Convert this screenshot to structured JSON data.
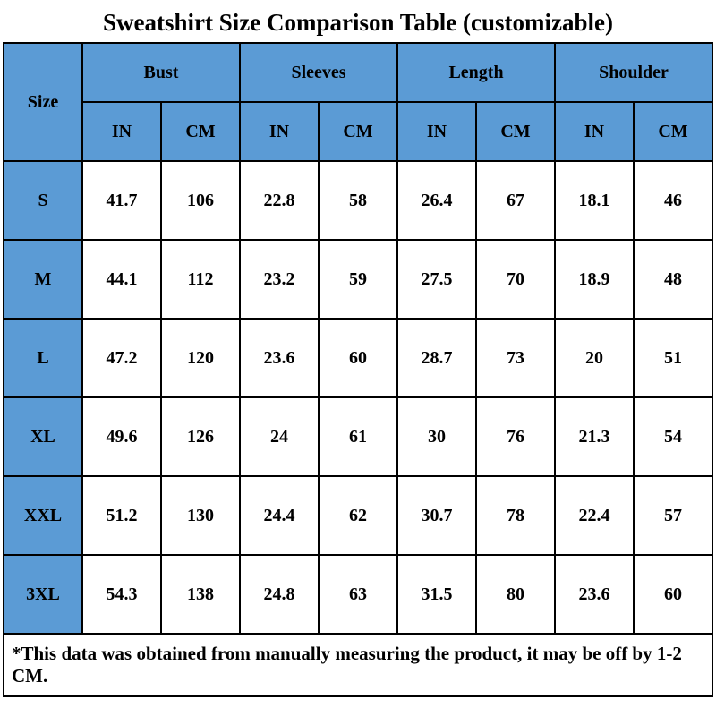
{
  "title": "Sweatshirt Size Comparison Table (customizable)",
  "table": {
    "size_header": "Size",
    "groups": [
      {
        "label": "Bust",
        "units": [
          "IN",
          "CM"
        ]
      },
      {
        "label": "Sleeves",
        "units": [
          "IN",
          "CM"
        ]
      },
      {
        "label": "Length",
        "units": [
          "IN",
          "CM"
        ]
      },
      {
        "label": "Shoulder",
        "units": [
          "IN",
          "CM"
        ]
      }
    ],
    "rows": [
      {
        "size": "S",
        "values": [
          "41.7",
          "106",
          "22.8",
          "58",
          "26.4",
          "67",
          "18.1",
          "46"
        ]
      },
      {
        "size": "M",
        "values": [
          "44.1",
          "112",
          "23.2",
          "59",
          "27.5",
          "70",
          "18.9",
          "48"
        ]
      },
      {
        "size": "L",
        "values": [
          "47.2",
          "120",
          "23.6",
          "60",
          "28.7",
          "73",
          "20",
          "51"
        ]
      },
      {
        "size": "XL",
        "values": [
          "49.6",
          "126",
          "24",
          "61",
          "30",
          "76",
          "21.3",
          "54"
        ]
      },
      {
        "size": "XXL",
        "values": [
          "51.2",
          "130",
          "24.4",
          "62",
          "30.7",
          "78",
          "22.4",
          "57"
        ]
      },
      {
        "size": "3XL",
        "values": [
          "54.3",
          "138",
          "24.8",
          "63",
          "31.5",
          "80",
          "23.6",
          "60"
        ]
      }
    ],
    "footnote": "*This data was obtained from manually measuring the product, it may be off by 1-2 CM."
  },
  "colors": {
    "header_bg": "#5B9BD5",
    "border": "#000000",
    "cell_bg": "#FFFFFF",
    "text": "#000000"
  }
}
